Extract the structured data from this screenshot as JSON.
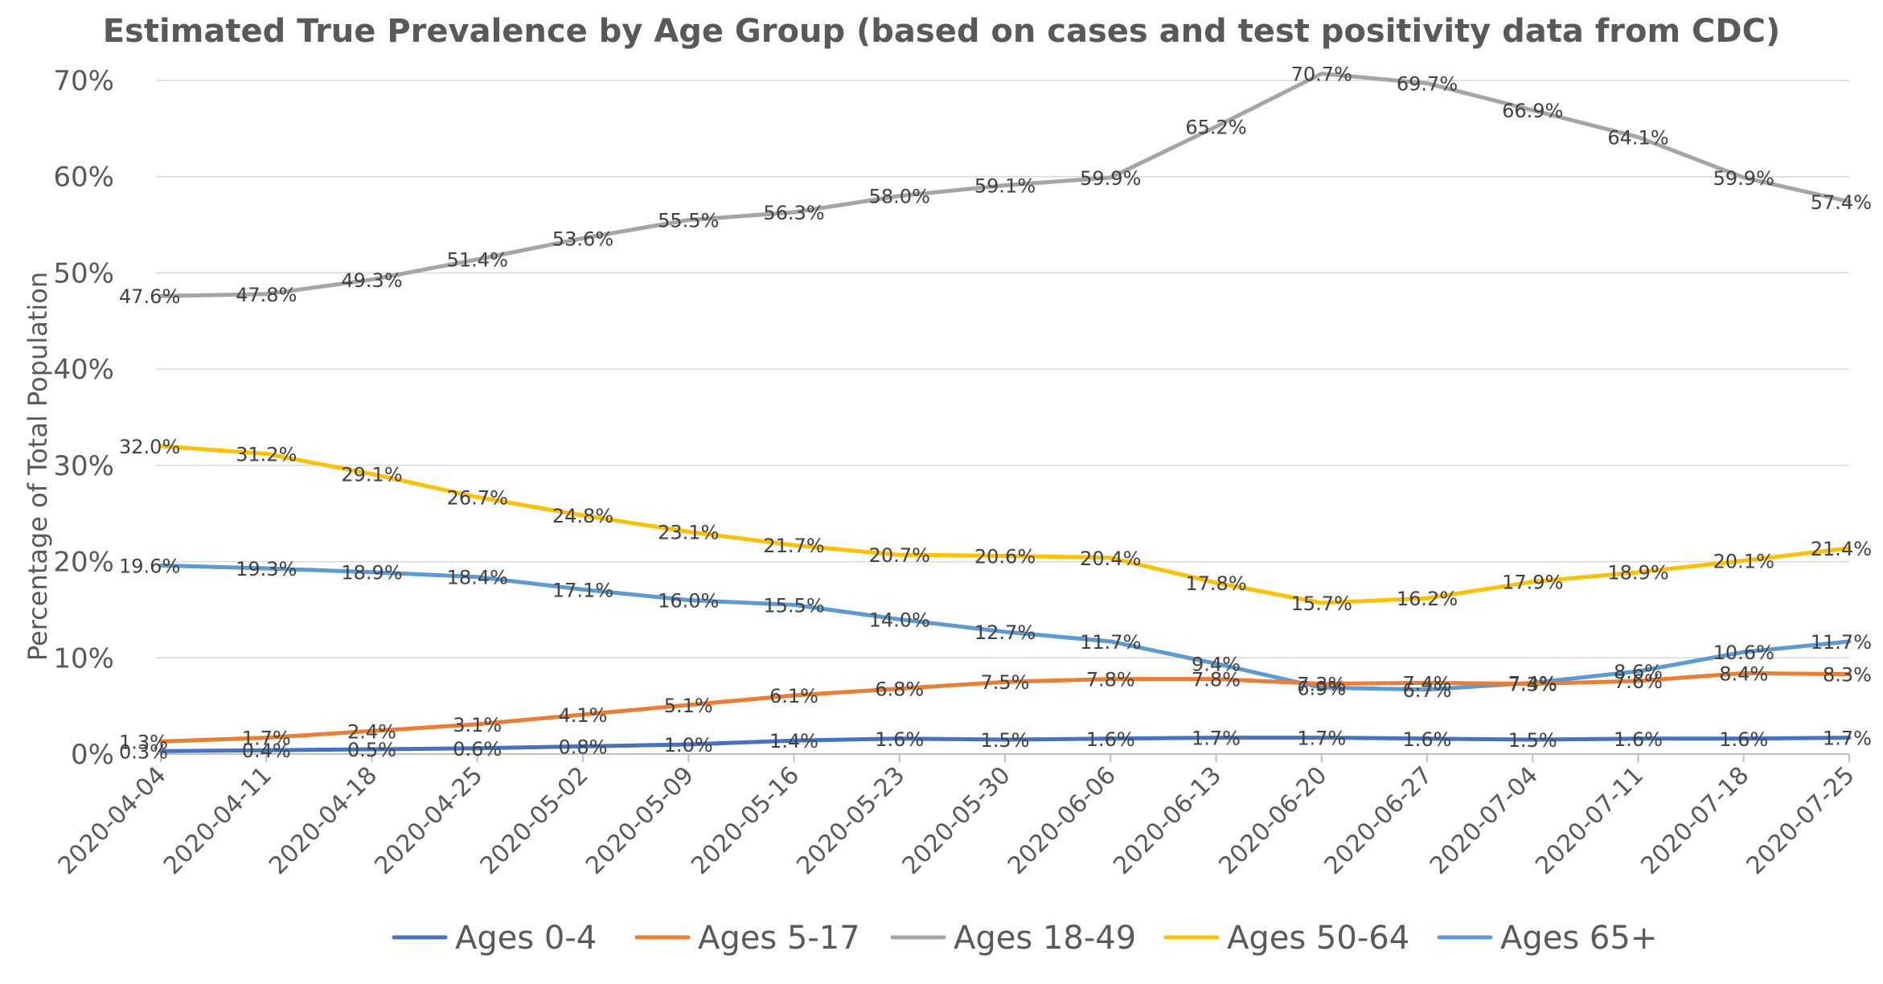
{
  "chart_data": {
    "type": "line",
    "title": "Estimated True Prevalence by Age Group (based on cases and test positivity data from CDC)",
    "xlabel": "",
    "ylabel": "Percentage of Total Population",
    "ylim": [
      0,
      70
    ],
    "yticks": [
      "0%",
      "10%",
      "20%",
      "30%",
      "40%",
      "50%",
      "60%",
      "70%"
    ],
    "grid": true,
    "legend_position": "bottom",
    "categories": [
      "2020-04-04",
      "2020-04-11",
      "2020-04-18",
      "2020-04-25",
      "2020-05-02",
      "2020-05-09",
      "2020-05-16",
      "2020-05-23",
      "2020-05-30",
      "2020-06-06",
      "2020-06-13",
      "2020-06-20",
      "2020-06-27",
      "2020-07-04",
      "2020-07-11",
      "2020-07-18",
      "2020-07-25"
    ],
    "series": [
      {
        "name": "Ages 0-4",
        "color": "#4472c4",
        "values": [
          0.3,
          0.4,
          0.5,
          0.6,
          0.8,
          1.0,
          1.4,
          1.6,
          1.5,
          1.6,
          1.7,
          1.7,
          1.6,
          1.5,
          1.6,
          1.6,
          1.7
        ],
        "labels": [
          "0.3%",
          "0.4%",
          "0.5%",
          "0.6%",
          "0.8%",
          "1.0%",
          "1.4%",
          "1.6%",
          "1.5%",
          "1.6%",
          "1.7%",
          "1.7%",
          "1.6%",
          "1.5%",
          "1.6%",
          "1.6%",
          "1.7%"
        ]
      },
      {
        "name": "Ages 5-17",
        "color": "#ed7d31",
        "values": [
          1.3,
          1.7,
          2.4,
          3.1,
          4.1,
          5.1,
          6.1,
          6.8,
          7.5,
          7.8,
          7.8,
          7.3,
          7.4,
          7.3,
          7.6,
          8.4,
          8.3
        ],
        "labels": [
          "1.3%",
          "1.7%",
          "2.4%",
          "3.1%",
          "4.1%",
          "5.1%",
          "6.1%",
          "6.8%",
          "7.5%",
          "7.8%",
          "7.8%",
          "7.3%",
          "7.4%",
          "7.3%",
          "7.6%",
          "8.4%",
          "8.3%"
        ]
      },
      {
        "name": "Ages 18-49",
        "color": "#a5a5a5",
        "values": [
          47.6,
          47.8,
          49.3,
          51.4,
          53.6,
          55.5,
          56.3,
          58.0,
          59.1,
          59.9,
          65.2,
          70.7,
          69.7,
          66.9,
          64.1,
          59.9,
          57.4
        ],
        "labels": [
          "47.6%",
          "47.8%",
          "49.3%",
          "51.4%",
          "53.6%",
          "55.5%",
          "56.3%",
          "58.0%",
          "59.1%",
          "59.9%",
          "65.2%",
          "70.7%",
          "69.7%",
          "66.9%",
          "64.1%",
          "59.9%",
          "57.4%"
        ]
      },
      {
        "name": "Ages 50-64",
        "color": "#ffc000",
        "values": [
          32.0,
          31.2,
          29.1,
          26.7,
          24.8,
          23.1,
          21.7,
          20.7,
          20.6,
          20.4,
          17.8,
          15.7,
          16.2,
          17.9,
          18.9,
          20.1,
          21.4
        ],
        "labels": [
          "32.0%",
          "31.2%",
          "29.1%",
          "26.7%",
          "24.8%",
          "23.1%",
          "21.7%",
          "20.7%",
          "20.6%",
          "20.4%",
          "17.8%",
          "15.7%",
          "16.2%",
          "17.9%",
          "18.9%",
          "20.1%",
          "21.4%"
        ]
      },
      {
        "name": "Ages 65+",
        "color": "#5b9bd5",
        "values": [
          19.6,
          19.3,
          18.9,
          18.4,
          17.1,
          16.0,
          15.5,
          14.0,
          12.7,
          11.7,
          9.4,
          6.9,
          6.7,
          7.4,
          8.6,
          10.6,
          11.7
        ],
        "labels": [
          "19.6%",
          "19.3%",
          "18.9%",
          "18.4%",
          "17.1%",
          "16.0%",
          "15.5%",
          "14.0%",
          "12.7%",
          "11.7%",
          "9.4%",
          "6.9%",
          "6.7%",
          "7.4%",
          "8.6%",
          "10.6%",
          "11.7%"
        ]
      }
    ]
  }
}
